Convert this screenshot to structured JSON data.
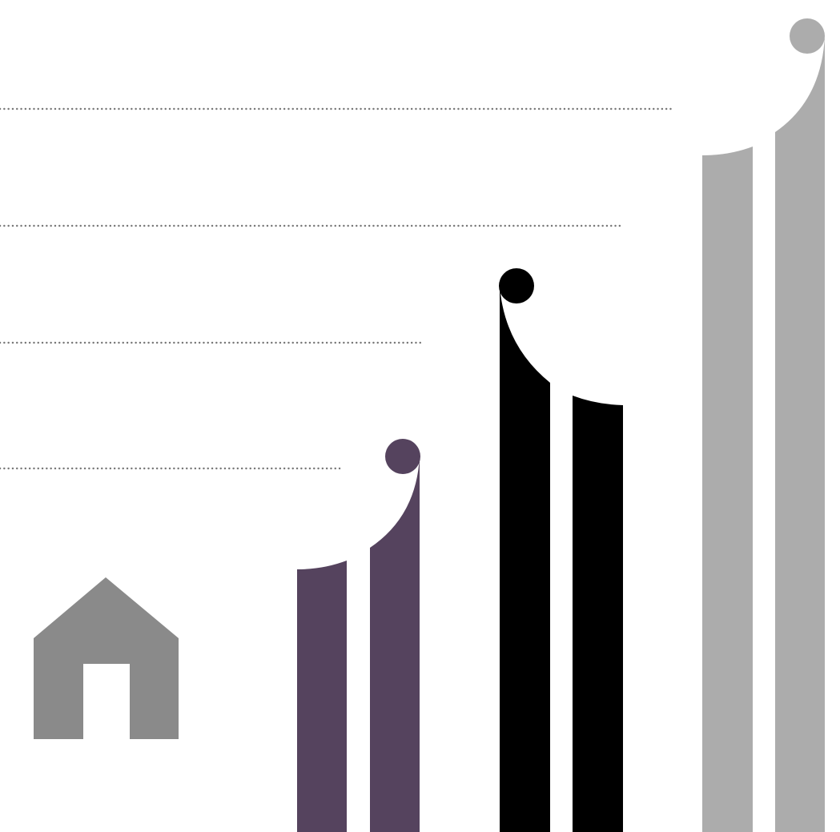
{
  "colors": {
    "background": "#ffffff",
    "home_icon": "#8a8a8a",
    "guide_dots": "#777777",
    "group_1": "#55435e",
    "group_2": "#000000",
    "group_3": "#acacac"
  },
  "icons": {
    "home": "home-icon"
  },
  "groups": [
    {
      "name": "",
      "color_key": "group_1"
    },
    {
      "name": "",
      "color_key": "group_2"
    },
    {
      "name": "",
      "color_key": "group_3"
    }
  ]
}
